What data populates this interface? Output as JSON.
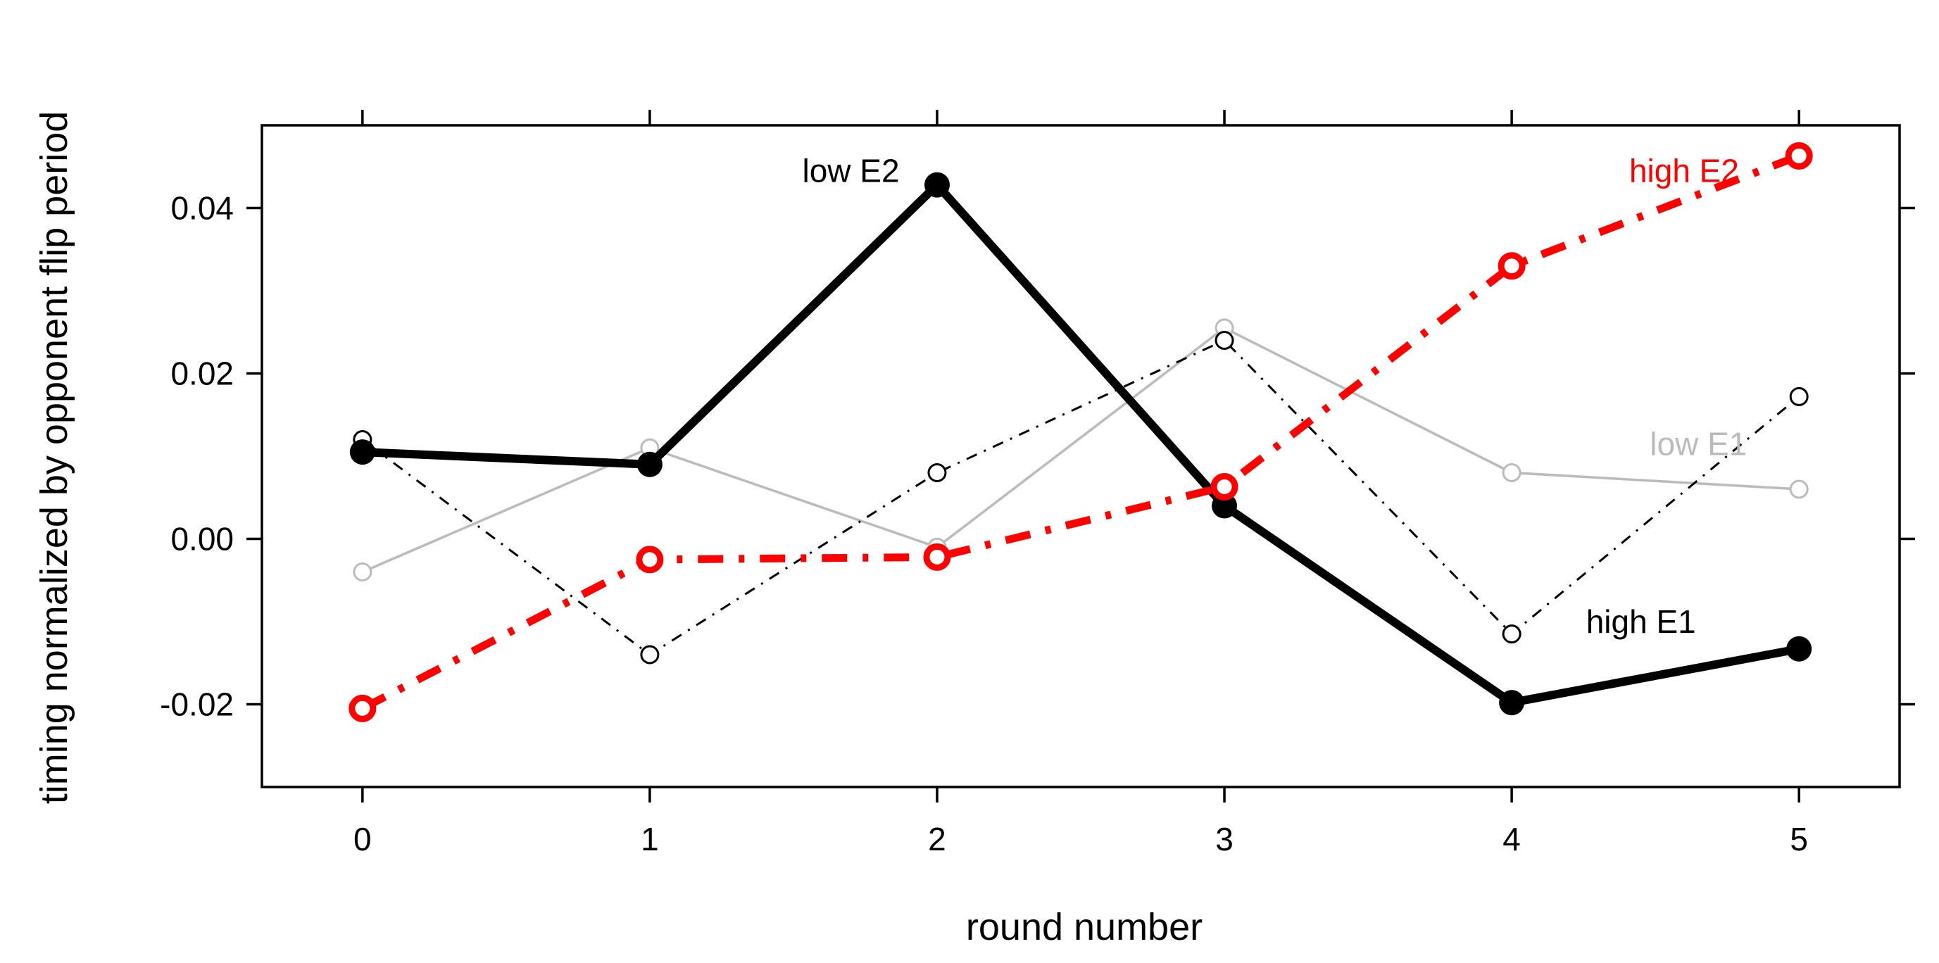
{
  "chart_data": {
    "type": "line",
    "xlabel": "round number",
    "ylabel": "timing normalized by opponent flip period",
    "x": [
      0,
      1,
      2,
      3,
      4,
      5
    ],
    "xlim": [
      -0.35,
      5.35
    ],
    "ylim": [
      -0.03,
      0.05
    ],
    "xticks": [
      "0",
      "1",
      "2",
      "3",
      "4",
      "5"
    ],
    "yticks": [
      "-0.02",
      "0.00",
      "0.02",
      "0.04"
    ],
    "ytick_values": [
      -0.02,
      0.0,
      0.02,
      0.04
    ],
    "grid": false,
    "series": [
      {
        "name": "low E1",
        "color": "#bbbbbb",
        "line_style": "solid",
        "marker": "open-circle",
        "values": [
          -0.004,
          0.011,
          -0.001,
          0.0255,
          0.008,
          0.006
        ],
        "label_anchor": [
          4.65,
          0.0115
        ]
      },
      {
        "name": "high E1",
        "color": "#000000",
        "line_style": "dot-dash-thin",
        "marker": "open-circle",
        "values": [
          0.012,
          -0.014,
          0.008,
          0.024,
          -0.0115,
          0.0172
        ],
        "label_anchor": [
          4.45,
          -0.01
        ]
      },
      {
        "name": "low E2",
        "color": "#000000",
        "line_style": "solid-thick",
        "marker": "filled-circle",
        "values": [
          0.0105,
          0.009,
          0.0428,
          0.004,
          -0.0198,
          -0.0133
        ],
        "label_anchor": [
          1.7,
          0.0445
        ]
      },
      {
        "name": "high E2",
        "color": "#ff0000",
        "line_style": "dash-dot-thick",
        "marker": "bold-ring",
        "values": [
          -0.0205,
          -0.0025,
          -0.0022,
          0.0063,
          0.033,
          0.0463
        ],
        "label_anchor": [
          4.6,
          0.0445
        ]
      }
    ]
  }
}
